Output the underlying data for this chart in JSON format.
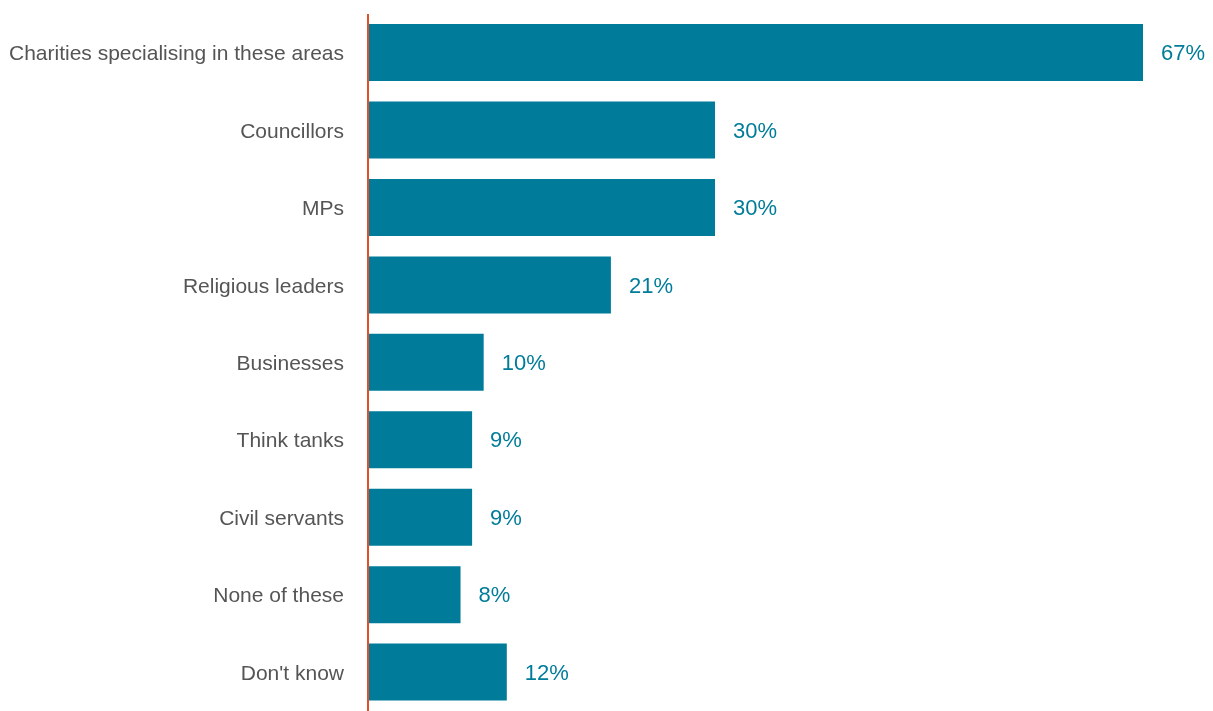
{
  "chart_data": {
    "type": "bar",
    "orientation": "horizontal",
    "categories": [
      "Charities specialising in these areas",
      "Councillors",
      "MPs",
      "Religious leaders",
      "Businesses",
      "Think tanks",
      "Civil servants",
      "None of these",
      "Don't know"
    ],
    "values": [
      67,
      30,
      30,
      21,
      10,
      9,
      9,
      8,
      12
    ],
    "value_labels": [
      "67%",
      "30%",
      "30%",
      "21%",
      "10%",
      "9%",
      "9%",
      "8%",
      "12%"
    ],
    "color": "#007c9a",
    "grid": false,
    "legend": false
  }
}
